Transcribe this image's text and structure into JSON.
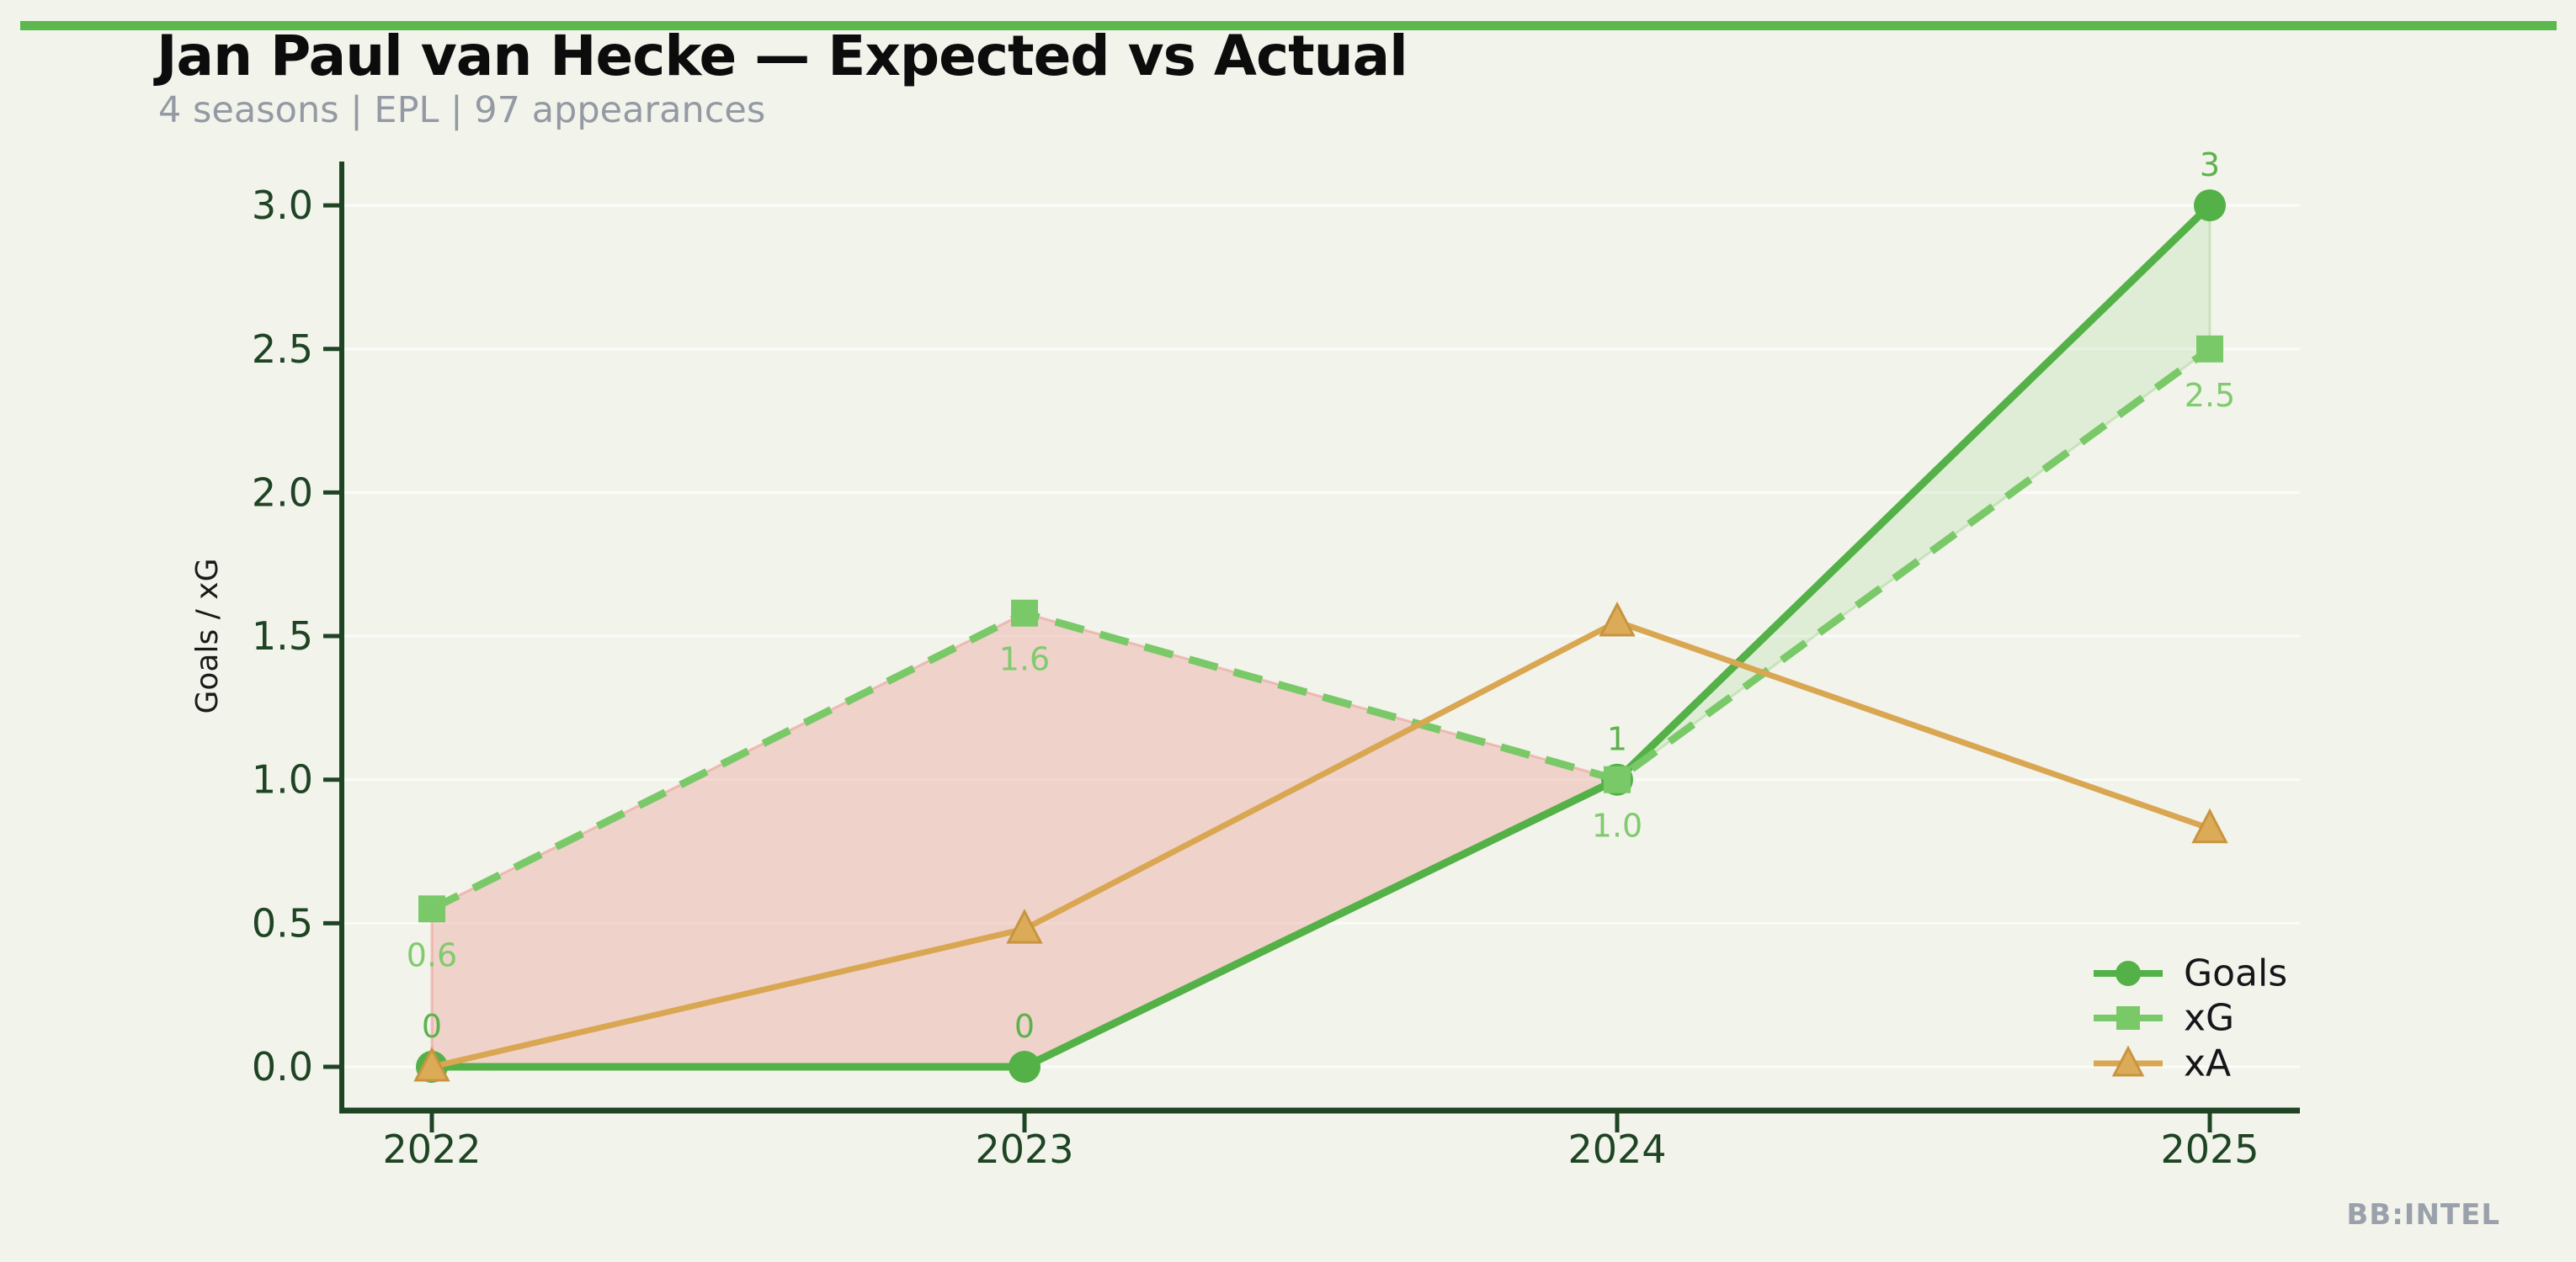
{
  "header": {
    "title": "Jan Paul van Hecke — Expected vs Actual",
    "subtitle": "4 seasons | EPL | 97 appearances"
  },
  "watermark": "BB:INTEL",
  "colors": {
    "background": "#f2f3eb",
    "accent_bar": "#5cb84e",
    "title_text": "#0c0c0c",
    "subtitle_text": "#949aa3",
    "watermark_text": "#9aa1ab",
    "axis_dark_green": "#1e4424",
    "gridline": "rgba(255,255,255,0.7)",
    "goals_green": "#53b148",
    "xg_light_green": "#79c968",
    "xa_tan": "#d9a651",
    "xa_tan_edge": "#c79540",
    "pink_fill": "rgba(236,160,152,0.40)",
    "pink_edge": "rgba(233,148,140,0.50)",
    "green_fill": "rgba(122,201,104,0.16)",
    "green_edge": "rgba(122,201,104,0.30)",
    "legend_text": "#141619",
    "ylabel_text": "#1a1a1a"
  },
  "chart_data": {
    "type": "line",
    "title": "Jan Paul van Hecke — Expected vs Actual",
    "subtitle": "4 seasons | EPL | 97 appearances",
    "x": [
      2022,
      2023,
      2024,
      2025
    ],
    "xticklabels": [
      "2022",
      "2023",
      "2024",
      "2025"
    ],
    "yticks": [
      0.0,
      0.5,
      1.0,
      1.5,
      2.0,
      2.5,
      3.0
    ],
    "yticklabels": [
      "0.0",
      "0.5",
      "1.0",
      "1.5",
      "2.0",
      "2.5",
      "3.0"
    ],
    "ylim": [
      0,
      3.2
    ],
    "xlabel": "",
    "ylabel": "Goals / xG",
    "grid": true,
    "series": [
      {
        "name": "Goals",
        "values": [
          0,
          0,
          1,
          3
        ],
        "value_labels": [
          "0",
          "0",
          "1",
          "3"
        ],
        "label_side": "above",
        "marker": "circle",
        "line_style": "solid",
        "color": "#53b148",
        "label_color": "#5cb24c"
      },
      {
        "name": "xG",
        "values": [
          0.55,
          1.58,
          1.0,
          2.5
        ],
        "value_labels": [
          "0.6",
          "1.6",
          "1.0",
          "2.5"
        ],
        "label_side": "below",
        "marker": "square",
        "line_style": "dashed",
        "color": "#79c968",
        "label_color": "#80cb6e"
      },
      {
        "name": "xA",
        "values": [
          0.0,
          0.48,
          1.55,
          0.83
        ],
        "value_labels": [],
        "label_side": "none",
        "marker": "triangle",
        "line_style": "solid",
        "color": "#d9a651",
        "label_color": "#d9a651"
      }
    ],
    "fills": [
      {
        "upper": "xG",
        "lower": "Goals",
        "from_index": 0,
        "to_index": 2,
        "fill": "rgba(236,160,152,0.40)",
        "stroke": "rgba(233,148,140,0.50)"
      },
      {
        "upper": "Goals",
        "lower": "xG",
        "from_index": 2,
        "to_index": 3,
        "fill": "rgba(122,201,104,0.16)",
        "stroke": "rgba(122,201,104,0.30)"
      }
    ],
    "legend": {
      "position": "lower right",
      "items": [
        "Goals",
        "xG",
        "xA"
      ]
    }
  }
}
